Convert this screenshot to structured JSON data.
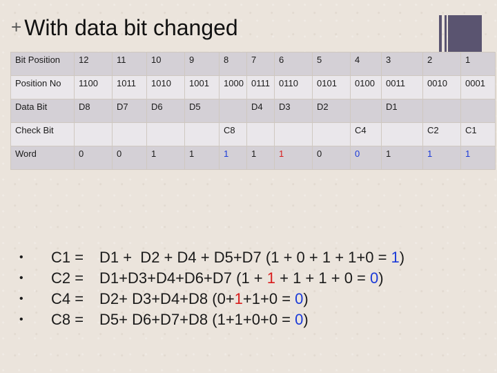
{
  "title": "With data bit changed",
  "title_marker": "+",
  "table": {
    "rows": [
      {
        "label": "Bit Position",
        "cells": [
          {
            "t": "12"
          },
          {
            "t": "11"
          },
          {
            "t": "10"
          },
          {
            "t": "9"
          },
          {
            "t": "8"
          },
          {
            "t": "7"
          },
          {
            "t": "6"
          },
          {
            "t": "5"
          },
          {
            "t": "4"
          },
          {
            "t": "3"
          },
          {
            "t": "2"
          },
          {
            "t": "1"
          }
        ]
      },
      {
        "label": "Position No",
        "cells": [
          {
            "t": "1100"
          },
          {
            "t": "1011"
          },
          {
            "t": "1010"
          },
          {
            "t": "1001"
          },
          {
            "t": "1000"
          },
          {
            "t": "0111"
          },
          {
            "t": "0110"
          },
          {
            "t": "0101"
          },
          {
            "t": "0100"
          },
          {
            "t": "0011"
          },
          {
            "t": "0010"
          },
          {
            "t": "0001"
          }
        ]
      },
      {
        "label": "Data Bit",
        "cells": [
          {
            "t": "D8"
          },
          {
            "t": "D7"
          },
          {
            "t": "D6"
          },
          {
            "t": "D5"
          },
          {
            "t": ""
          },
          {
            "t": "D4"
          },
          {
            "t": "D3"
          },
          {
            "t": "D2"
          },
          {
            "t": ""
          },
          {
            "t": "D1"
          },
          {
            "t": ""
          },
          {
            "t": ""
          }
        ]
      },
      {
        "label": "Check Bit",
        "cells": [
          {
            "t": ""
          },
          {
            "t": ""
          },
          {
            "t": ""
          },
          {
            "t": ""
          },
          {
            "t": "C8"
          },
          {
            "t": ""
          },
          {
            "t": ""
          },
          {
            "t": ""
          },
          {
            "t": "C4"
          },
          {
            "t": ""
          },
          {
            "t": "C2"
          },
          {
            "t": "C1"
          }
        ]
      },
      {
        "label": "Word",
        "cells": [
          {
            "t": "0",
            "color": "black"
          },
          {
            "t": "0",
            "color": "black"
          },
          {
            "t": "1",
            "color": "black"
          },
          {
            "t": "1",
            "color": "black"
          },
          {
            "t": "1",
            "color": "blue"
          },
          {
            "t": "1",
            "color": "black"
          },
          {
            "t": "1",
            "color": "red"
          },
          {
            "t": "0",
            "color": "black"
          },
          {
            "t": "0",
            "color": "blue"
          },
          {
            "t": "1",
            "color": "black"
          },
          {
            "t": "1",
            "color": "blue"
          },
          {
            "t": "1",
            "color": "blue"
          }
        ]
      }
    ]
  },
  "formulas": [
    {
      "bullet": "•",
      "lhs": "C1 =",
      "parts": [
        {
          "t": "D1 +  D2 + D4 + D5+D7 (1 + 0 + 1 + 1+0 = "
        },
        {
          "t": "1",
          "color": "blue"
        },
        {
          "t": ")"
        }
      ]
    },
    {
      "bullet": "•",
      "lhs": "C2 =",
      "parts": [
        {
          "t": "D1+D3+D4+D6+D7 (1 + "
        },
        {
          "t": "1",
          "color": "red"
        },
        {
          "t": " + 1 + 1 + 0 = "
        },
        {
          "t": "0",
          "color": "blue"
        },
        {
          "t": ")"
        }
      ]
    },
    {
      "bullet": "•",
      "lhs": "C4 =",
      "parts": [
        {
          "t": "D2+ D3+D4+D8 (0+"
        },
        {
          "t": "1",
          "color": "red"
        },
        {
          "t": "+1+0 = "
        },
        {
          "t": "0",
          "color": "blue"
        },
        {
          "t": ")"
        }
      ]
    },
    {
      "bullet": "•",
      "lhs": "C8 =",
      "parts": [
        {
          "t": "D5+ D6+D7+D8 (1+1+0+0 = "
        },
        {
          "t": "0",
          "color": "blue"
        },
        {
          "t": ")"
        }
      ]
    }
  ],
  "colors": {
    "blue": "#1a3ad8",
    "red": "#d81a1a",
    "black": "#1a1a1a",
    "accent_bar": "#5a5470"
  }
}
